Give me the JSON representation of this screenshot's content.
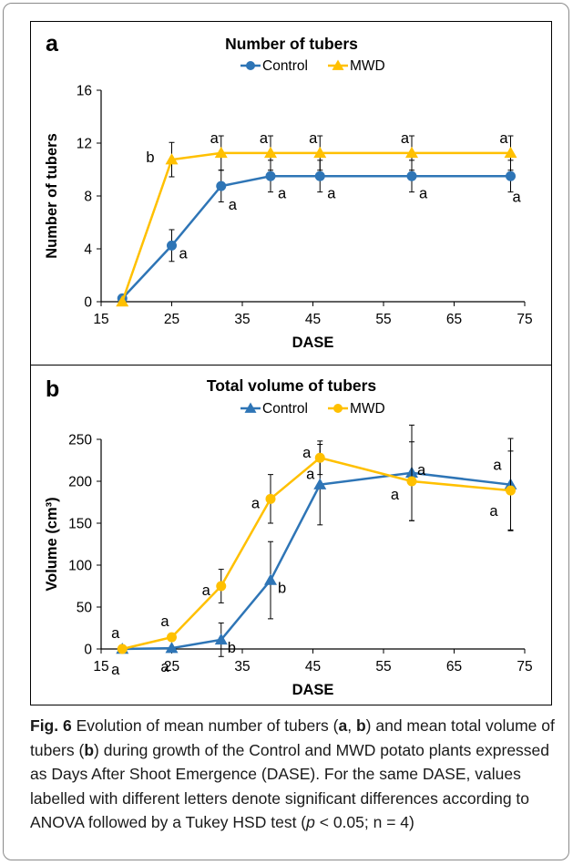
{
  "chart_data": [
    {
      "type": "line",
      "panel_label": "a",
      "title": "Number of tubers",
      "xlabel": "DASE",
      "ylabel": "Number of tubers",
      "xlim": [
        15,
        75
      ],
      "ylim": [
        0,
        16
      ],
      "xticks": [
        15,
        25,
        35,
        45,
        55,
        65,
        75
      ],
      "yticks": [
        0,
        4,
        8,
        12,
        16
      ],
      "grid": false,
      "legend_position": "top-center",
      "series": [
        {
          "name": "Control",
          "color": "#2e75b6",
          "marker": "circle",
          "x": [
            18,
            25,
            32,
            39,
            46,
            59,
            73
          ],
          "y": [
            0.25,
            4.25,
            8.75,
            9.5,
            9.5,
            9.5,
            9.5
          ],
          "error": [
            0.2,
            1.2,
            1.2,
            1.2,
            1.2,
            1.2,
            1.2
          ],
          "letters": [
            "",
            "a",
            "a",
            "a",
            "a",
            "a",
            "a"
          ]
        },
        {
          "name": "MWD",
          "color": "#ffc000",
          "marker": "triangle",
          "x": [
            18,
            25,
            32,
            39,
            46,
            59,
            73
          ],
          "y": [
            0,
            10.75,
            11.25,
            11.25,
            11.25,
            11.25,
            11.25
          ],
          "error": [
            0,
            1.3,
            1.3,
            1.3,
            1.3,
            1.3,
            1.3
          ],
          "letters": [
            "",
            "b",
            "a",
            "a",
            "a",
            "a",
            "a"
          ]
        }
      ]
    },
    {
      "type": "line",
      "panel_label": "b",
      "title": "Total volume of tubers",
      "xlabel": "DASE",
      "ylabel": "Volume (cm³)",
      "xlim": [
        15,
        75
      ],
      "ylim": [
        0,
        250
      ],
      "xticks": [
        15,
        25,
        35,
        45,
        55,
        65,
        75
      ],
      "yticks": [
        0,
        50,
        100,
        150,
        200,
        250
      ],
      "grid": false,
      "legend_position": "top-center",
      "series": [
        {
          "name": "Control",
          "color": "#2e75b6",
          "marker": "triangle",
          "x": [
            18,
            25,
            32,
            39,
            46,
            59,
            73
          ],
          "y": [
            0,
            1,
            11,
            82,
            196,
            210,
            196
          ],
          "error": [
            0,
            0,
            20,
            46,
            48,
            57,
            55
          ],
          "letters": [
            "a",
            "a",
            "b",
            "b",
            "a",
            "a",
            "a"
          ]
        },
        {
          "name": "MWD",
          "color": "#ffc000",
          "marker": "circle",
          "x": [
            18,
            25,
            32,
            39,
            46,
            59,
            73
          ],
          "y": [
            0,
            14,
            75,
            179,
            228,
            200,
            189
          ],
          "error": [
            0,
            0,
            20,
            29,
            20,
            47,
            47
          ],
          "letters": [
            "a",
            "a",
            "a",
            "a",
            "a",
            "a",
            "a"
          ]
        }
      ]
    }
  ],
  "caption": {
    "fig_label": "Fig. 6",
    "text_1": "  Evolution of mean number of tubers (",
    "bold_a": "a",
    "text_2": ", ",
    "bold_b": "b",
    "text_3": ") and mean total volume of tubers (",
    "bold_b2": "b",
    "text_4": ") during growth of the Control and MWD potato plants expressed as Days After Shoot Emergence (DASE). For the same DASE, values labelled with different letters denote significant differences according to ANOVA followed by a Tukey HSD test (",
    "p_symbol": "p",
    "text_5": " < 0.05; n = 4)"
  }
}
